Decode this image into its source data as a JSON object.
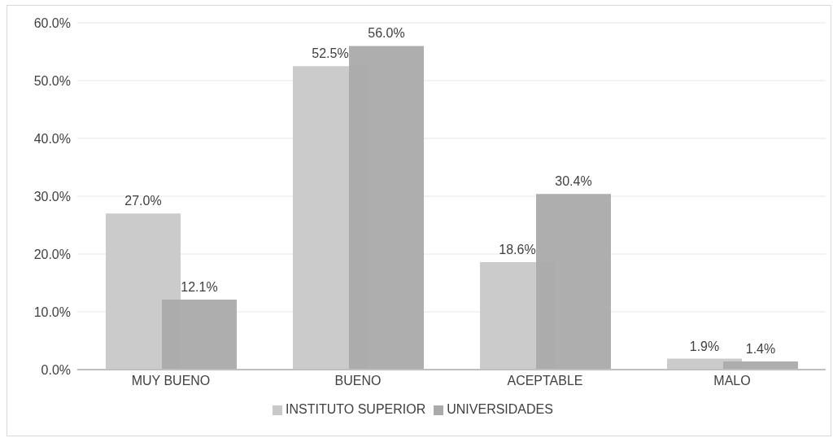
{
  "chart_data": {
    "type": "bar",
    "categories": [
      "MUY BUENO",
      "BUENO",
      "ACEPTABLE",
      "MALO"
    ],
    "series": [
      {
        "name": "INSTITUTO SUPERIOR",
        "color": "#c8c8c8",
        "values": [
          27.0,
          52.5,
          18.6,
          1.9
        ],
        "value_labels": [
          "27.0%",
          "52.5%",
          "18.6%",
          "1.9%"
        ]
      },
      {
        "name": "UNIVERSIDADES",
        "color": "#aaaaaa",
        "values": [
          12.1,
          56.0,
          30.4,
          1.4
        ],
        "value_labels": [
          "12.1%",
          "56.0%",
          "30.4%",
          "1.4%"
        ]
      }
    ],
    "ylim": [
      0,
      60
    ],
    "yticks": [
      {
        "value": 0,
        "label": "0.0%"
      },
      {
        "value": 10,
        "label": "10.0%"
      },
      {
        "value": 20,
        "label": "20.0%"
      },
      {
        "value": 30,
        "label": "30.0%"
      },
      {
        "value": 40,
        "label": "40.0%"
      },
      {
        "value": 50,
        "label": "50.0%"
      },
      {
        "value": 60,
        "label": "60.0%"
      }
    ],
    "grid": "y",
    "legend": "bottom"
  }
}
